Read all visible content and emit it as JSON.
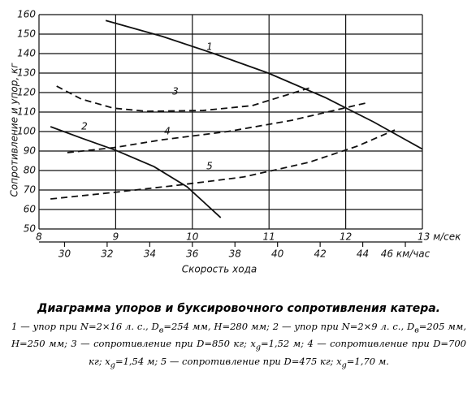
{
  "chart_data": {
    "type": "line",
    "y_label": "Сопротивление и упор, кг",
    "x_label": "Скорость хода",
    "xlim": [
      8,
      13
    ],
    "xticks": [
      8,
      9,
      10,
      11,
      12,
      {
        "value": 13,
        "label": "13 м/сек"
      }
    ],
    "x2lim": [
      28.8,
      46.8
    ],
    "x2ticks": [
      30,
      32,
      34,
      36,
      38,
      40,
      42,
      44,
      {
        "value": 46,
        "label": "46 км/час"
      }
    ],
    "ylim": [
      50,
      160
    ],
    "yticks": [
      50,
      60,
      70,
      80,
      90,
      100,
      110,
      120,
      130,
      140,
      150,
      160
    ],
    "grid": true,
    "series": [
      {
        "name": "1",
        "color": "#111",
        "dashed": false,
        "x": [
          8.87,
          9.61,
          10.25,
          10.99,
          11.73,
          12.36,
          13.0
        ],
        "values": [
          157,
          148.8,
          140.4,
          130,
          117.5,
          105,
          91
        ]
      },
      {
        "name": "2",
        "color": "#111",
        "dashed": false,
        "x": [
          8.15,
          8.55,
          9.0,
          9.5,
          9.93,
          10.37
        ],
        "values": [
          102.5,
          96.7,
          90.4,
          82,
          71.7,
          55.8
        ]
      },
      {
        "name": "3",
        "color": "#111",
        "dashed": true,
        "x": [
          8.23,
          8.55,
          8.97,
          9.4,
          10.14,
          10.78,
          11.57
        ],
        "values": [
          123.3,
          116.7,
          112,
          110.4,
          110.8,
          113.3,
          122.9
        ]
      },
      {
        "name": "4",
        "color": "#111",
        "dashed": true,
        "x": [
          8.37,
          8.97,
          9.61,
          10.46,
          11.3,
          12.26
        ],
        "values": [
          89.2,
          91.7,
          95.8,
          100,
          105.8,
          114.6
        ]
      },
      {
        "name": "5",
        "color": "#111",
        "dashed": true,
        "x": [
          8.15,
          8.97,
          9.82,
          10.67,
          11.52,
          12.15,
          12.64
        ],
        "values": [
          65.4,
          68.75,
          72.5,
          76.7,
          84.2,
          92.5,
          100.8
        ]
      }
    ]
  },
  "caption": {
    "title": "Диаграмма упоров и буксировочного сопротивления катера.",
    "runs": [
      {
        "text": "1 — упор при N=2×16 л. с., D"
      },
      {
        "text": "в",
        "sub": true
      },
      {
        "text": "=254 мм, H=280 мм; 2 — упор при N=2×9 л. с., D"
      },
      {
        "text": "в",
        "sub": true
      },
      {
        "text": "=205 мм, H=250 мм; 3 — сопротивление при D=850 кг; x"
      },
      {
        "text": "g",
        "sub": true
      },
      {
        "text": "=1,52 м; 4 — сопротивление при D=700 кг; x"
      },
      {
        "text": "g",
        "sub": true
      },
      {
        "text": "=1,54 м; 5 — сопротивление при D=475 кг; x"
      },
      {
        "text": "g",
        "sub": true
      },
      {
        "text": "=1,70 м."
      }
    ]
  }
}
